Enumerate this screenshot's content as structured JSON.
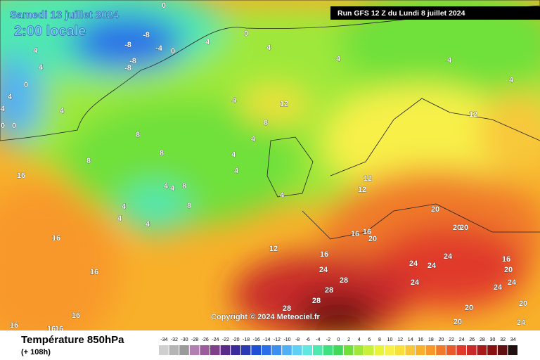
{
  "header": {
    "date": "Samedi 13 juillet 2024",
    "time": "2:00 locale",
    "run": "Run GFS 12 Z du Lundi 8 juillet 2024",
    "copyright": "Copyright © 2024 Meteociel.fr"
  },
  "legend": {
    "title": "Température 850hPa",
    "lead": "(+ 108h)",
    "ticks": [
      -34,
      -32,
      -30,
      -28,
      -26,
      -24,
      -22,
      -20,
      -18,
      -16,
      -14,
      -12,
      -10,
      -8,
      -6,
      -4,
      -2,
      0,
      2,
      4,
      6,
      8,
      10,
      12,
      14,
      16,
      18,
      20,
      22,
      24,
      26,
      28,
      30,
      32,
      34
    ],
    "colors": [
      "#cfcfcf",
      "#b4b4b4",
      "#9a9a9a",
      "#b27fb2",
      "#9a5c9a",
      "#7f3f8a",
      "#5a2a8a",
      "#3a2a9a",
      "#2a3ab4",
      "#1f4fd4",
      "#2a6fe8",
      "#3a8ff0",
      "#4fb0f4",
      "#5fd0f4",
      "#5fe8e0",
      "#4fe8b0",
      "#3fe080",
      "#3fd85a",
      "#6fe03a",
      "#9fe83a",
      "#c8f03a",
      "#e8f43a",
      "#f8f04a",
      "#f8e03a",
      "#f8c83a",
      "#f8b02a",
      "#f8982a",
      "#f07a2a",
      "#e85a2a",
      "#e03a2a",
      "#c82a2a",
      "#a81a1a",
      "#881010",
      "#601010",
      "#201010"
    ]
  },
  "map_labels": [
    0,
    -8,
    -8,
    -4,
    -8,
    -8,
    0,
    0,
    4,
    4,
    4,
    4,
    4,
    0,
    4,
    -4,
    0,
    0,
    4,
    4,
    12,
    8,
    8,
    8,
    8,
    4,
    4,
    4,
    4,
    4,
    8,
    8,
    4,
    4,
    4,
    4,
    12,
    12,
    4,
    4,
    12,
    16,
    16,
    16,
    16,
    16,
    16,
    16,
    20,
    20,
    20,
    20,
    16,
    16,
    12,
    16,
    24,
    16,
    20,
    24,
    24,
    24,
    28,
    28,
    28,
    28,
    24,
    24,
    24,
    20,
    20,
    20,
    24
  ]
}
